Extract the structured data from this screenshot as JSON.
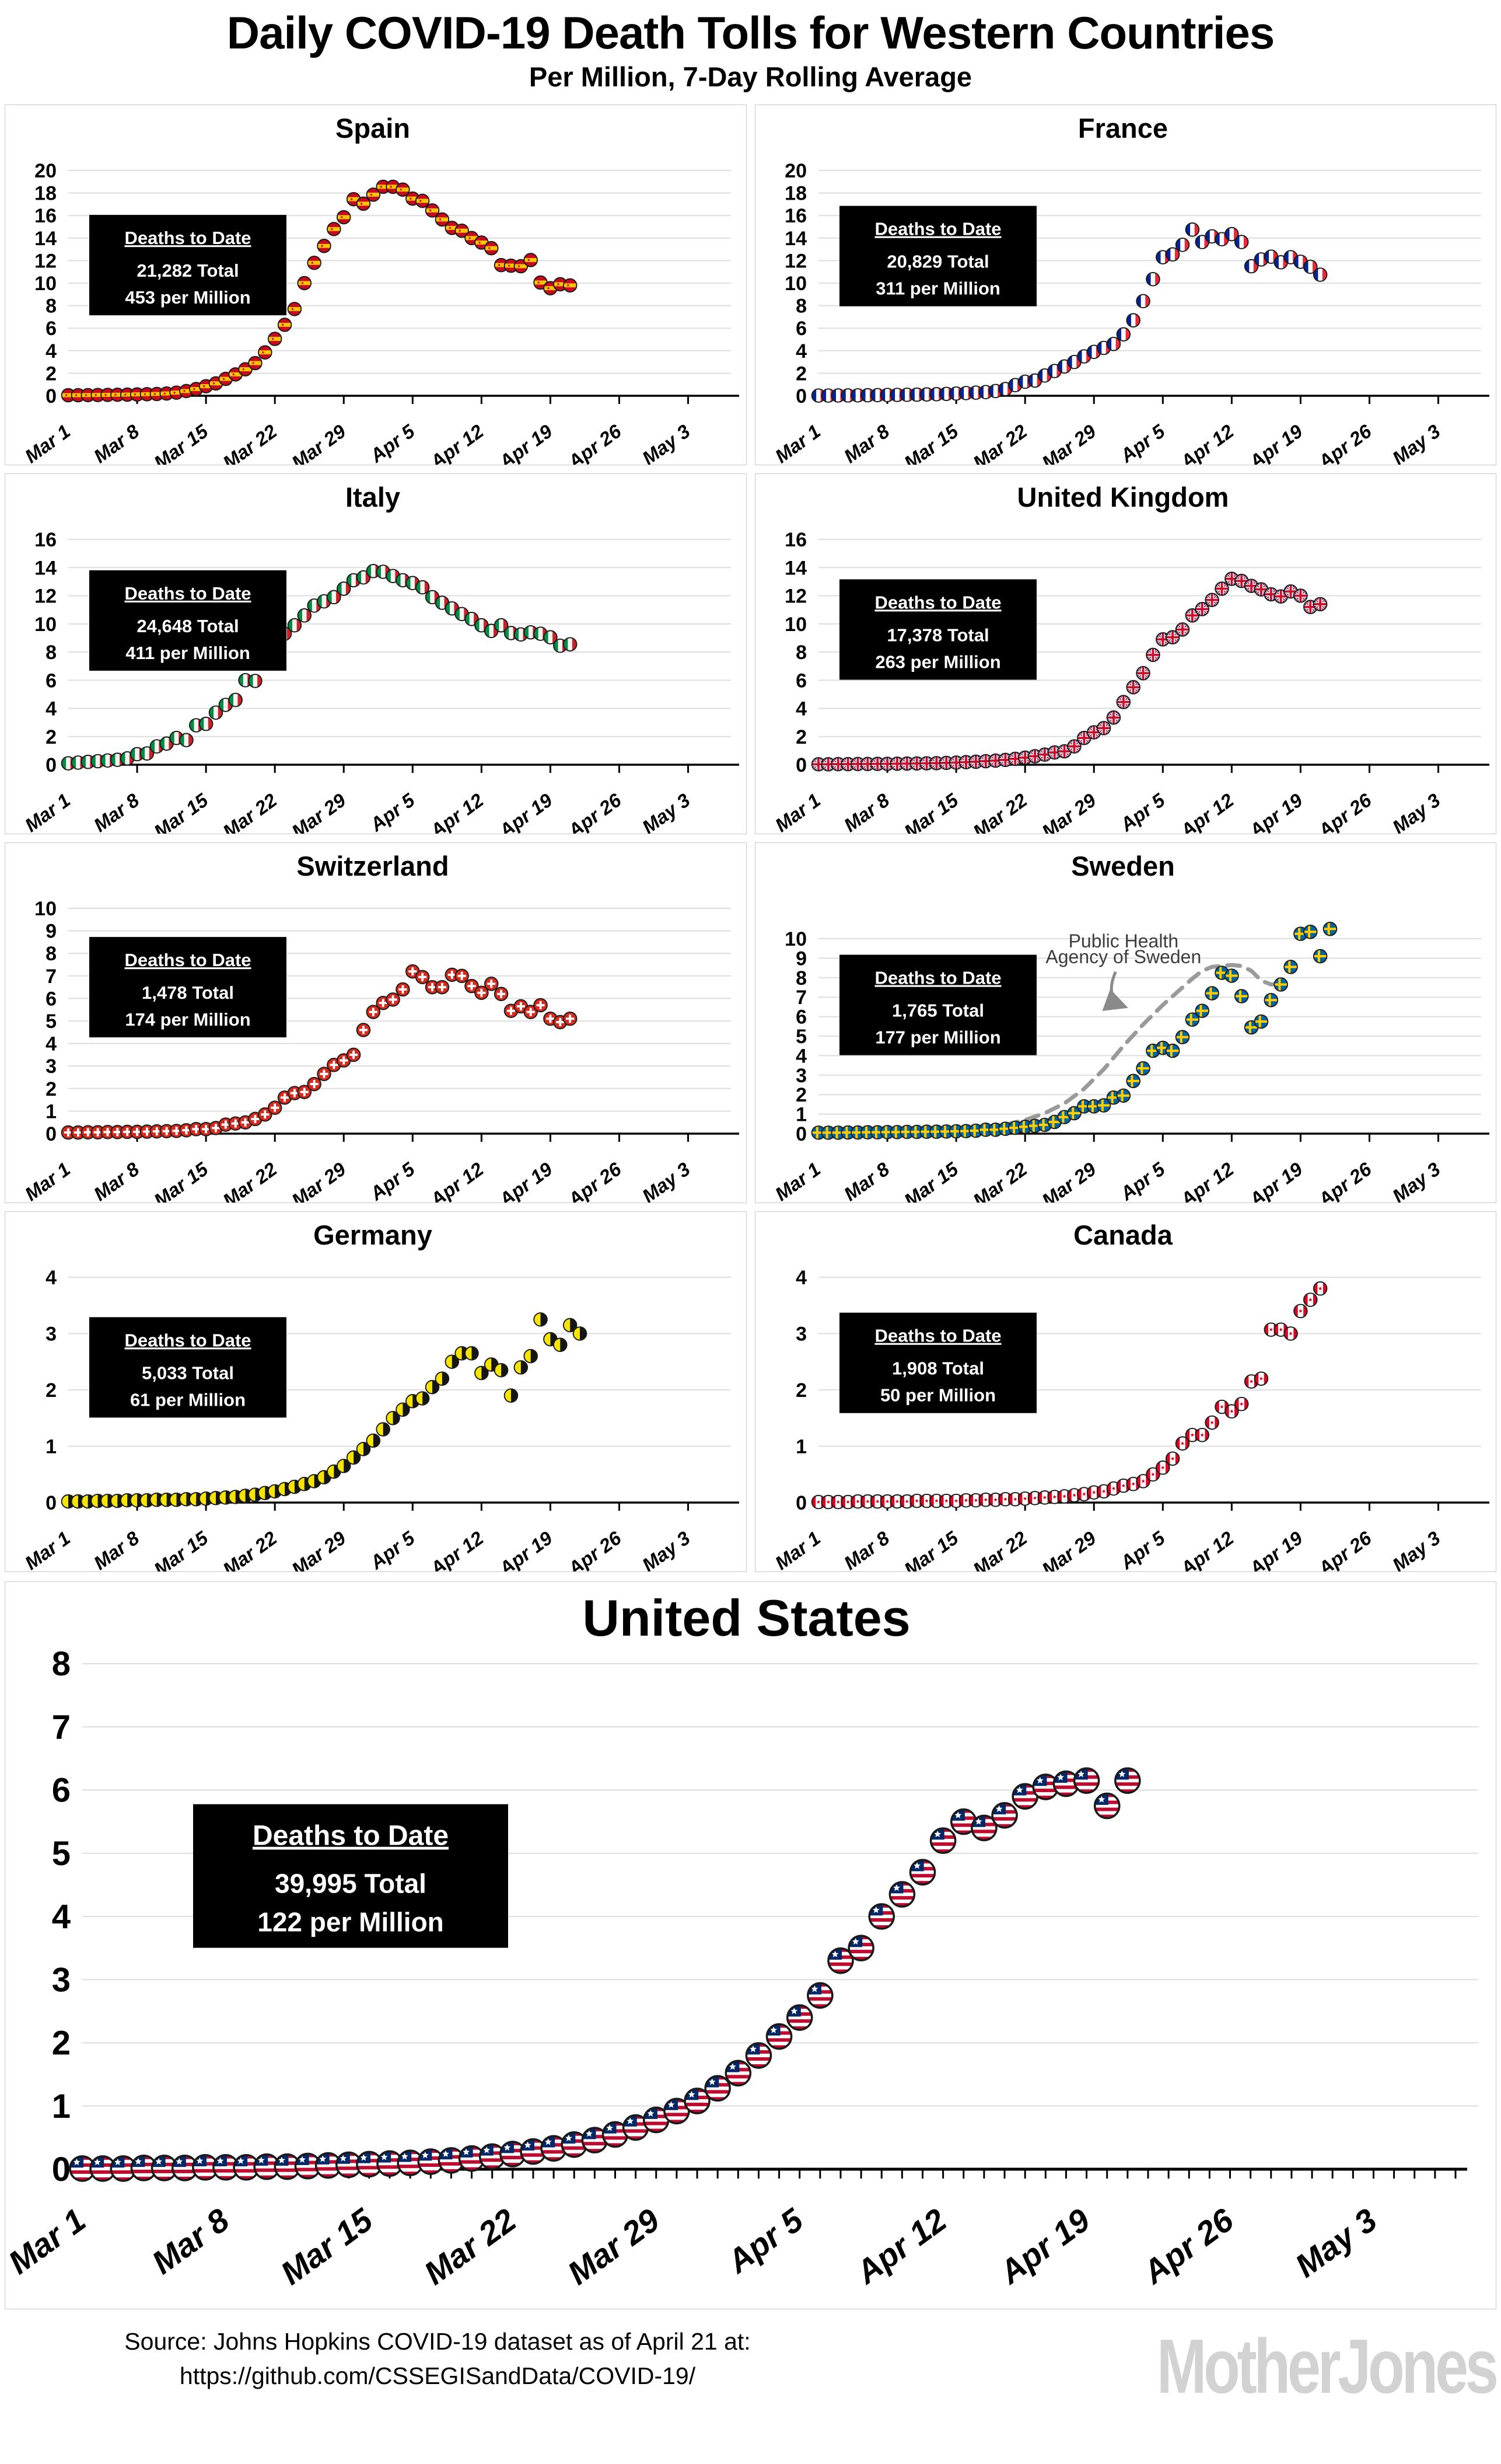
{
  "header": {
    "title": "Daily COVID-19 Death Tolls for Western Countries",
    "subtitle": "Per Million, 7-Day Rolling Average"
  },
  "x_labels": [
    "Mar 1",
    "Mar 8",
    "Mar 15",
    "Mar 22",
    "Mar 29",
    "Apr 5",
    "Apr 12",
    "Apr 19",
    "Apr 26",
    "May 3"
  ],
  "x_label_days": [
    0,
    7,
    14,
    21,
    28,
    35,
    42,
    49,
    56,
    63
  ],
  "chart_data": [
    {
      "type": "scatter",
      "title": "Spain",
      "marker": "spain-flag-icon",
      "ylim": [
        0,
        20
      ],
      "y_step": 2,
      "ann_cy": 0.42,
      "annotation": {
        "heading": "Deaths to Date",
        "total": "21,282 Total",
        "per_million": "453 per Million"
      },
      "x_start": "Mar 1",
      "values": [
        0.05,
        0.05,
        0.06,
        0.07,
        0.08,
        0.09,
        0.1,
        0.12,
        0.14,
        0.16,
        0.2,
        0.28,
        0.42,
        0.6,
        0.85,
        1.1,
        1.5,
        1.9,
        2.35,
        2.9,
        3.85,
        5.05,
        6.3,
        7.7,
        10.0,
        11.8,
        13.3,
        14.8,
        15.85,
        17.45,
        17.05,
        17.85,
        18.55,
        18.55,
        18.3,
        17.5,
        17.3,
        16.45,
        15.65,
        14.9,
        14.65,
        14.0,
        13.6,
        13.1,
        11.6,
        11.55,
        11.5,
        12.05,
        10.05,
        9.55,
        9.9,
        9.8
      ]
    },
    {
      "type": "scatter",
      "title": "France",
      "marker": "france-flag-icon",
      "ylim": [
        0,
        20
      ],
      "y_step": 2,
      "ann_cy": 0.38,
      "annotation": {
        "heading": "Deaths to Date",
        "total": "20,829 Total",
        "per_million": "311 per Million"
      },
      "x_start": "Mar 1",
      "values": [
        0.02,
        0.02,
        0.03,
        0.03,
        0.04,
        0.05,
        0.06,
        0.07,
        0.08,
        0.09,
        0.1,
        0.12,
        0.14,
        0.17,
        0.2,
        0.24,
        0.28,
        0.33,
        0.42,
        0.6,
        0.95,
        1.25,
        1.35,
        1.8,
        2.2,
        2.6,
        3.0,
        3.5,
        3.9,
        4.25,
        4.6,
        5.45,
        6.7,
        8.4,
        10.35,
        12.3,
        12.55,
        13.4,
        14.75,
        13.65,
        14.15,
        13.9,
        14.35,
        13.65,
        11.5,
        12.1,
        12.35,
        11.85,
        12.3,
        11.9,
        11.45,
        10.75
      ]
    },
    {
      "type": "scatter",
      "title": "Italy",
      "marker": "italy-flag-icon",
      "ylim": [
        0,
        16
      ],
      "y_step": 2,
      "ann_cy": 0.36,
      "annotation": {
        "heading": "Deaths to Date",
        "total": "24,648 Total",
        "per_million": "411 per Million"
      },
      "x_start": "Mar 1",
      "values": [
        0.1,
        0.15,
        0.2,
        0.25,
        0.3,
        0.35,
        0.45,
        0.75,
        0.8,
        1.3,
        1.5,
        1.9,
        1.75,
        2.8,
        2.9,
        3.7,
        4.25,
        4.6,
        6.0,
        5.95,
        7.2,
        8.4,
        9.3,
        9.9,
        10.6,
        11.3,
        11.6,
        11.9,
        12.5,
        13.1,
        13.3,
        13.75,
        13.7,
        13.4,
        13.1,
        12.9,
        12.6,
        11.9,
        11.5,
        11.1,
        10.7,
        10.35,
        9.9,
        9.5,
        9.9,
        9.35,
        9.25,
        9.4,
        9.3,
        9.05,
        8.45,
        8.55
      ]
    },
    {
      "type": "scatter",
      "title": "United Kingdom",
      "marker": "uk-flag-icon",
      "ylim": [
        0,
        16
      ],
      "y_step": 2,
      "ann_cy": 0.4,
      "annotation": {
        "heading": "Deaths to Date",
        "total": "17,378 Total",
        "per_million": "263 per Million"
      },
      "x_start": "Mar 1",
      "values": [
        0.03,
        0.03,
        0.04,
        0.04,
        0.05,
        0.05,
        0.06,
        0.06,
        0.07,
        0.08,
        0.09,
        0.1,
        0.11,
        0.13,
        0.15,
        0.18,
        0.21,
        0.25,
        0.29,
        0.34,
        0.42,
        0.5,
        0.6,
        0.72,
        0.87,
        0.95,
        1.3,
        1.9,
        2.3,
        2.6,
        3.35,
        4.45,
        5.5,
        6.5,
        7.8,
        8.9,
        9.05,
        9.6,
        10.6,
        11.05,
        11.7,
        12.5,
        13.2,
        13.05,
        12.7,
        12.45,
        12.1,
        11.95,
        12.3,
        12.0,
        11.2,
        11.4
      ]
    },
    {
      "type": "scatter",
      "title": "Switzerland",
      "marker": "switzerland-flag-icon",
      "ylim": [
        0,
        10
      ],
      "y_step": 1,
      "ann_cy": 0.35,
      "annotation": {
        "heading": "Deaths to Date",
        "total": "1,478 Total",
        "per_million": "174 per Million"
      },
      "x_start": "Mar 1",
      "values": [
        0.05,
        0.05,
        0.06,
        0.06,
        0.07,
        0.07,
        0.08,
        0.08,
        0.09,
        0.1,
        0.11,
        0.12,
        0.15,
        0.2,
        0.2,
        0.25,
        0.4,
        0.45,
        0.5,
        0.65,
        0.85,
        1.15,
        1.6,
        1.8,
        1.85,
        2.2,
        2.65,
        3.05,
        3.25,
        3.5,
        4.6,
        5.4,
        5.8,
        5.95,
        6.4,
        7.2,
        6.95,
        6.5,
        6.5,
        7.05,
        7.0,
        6.55,
        6.25,
        6.65,
        6.2,
        5.45,
        5.65,
        5.4,
        5.7,
        5.1,
        4.95,
        5.1
      ]
    },
    {
      "type": "scatter",
      "title": "Sweden",
      "marker": "sweden-flag-icon",
      "ylim": [
        0,
        10
      ],
      "y_step": 1,
      "ann_cy": 0.34,
      "headroom": 52,
      "annotation": {
        "heading": "Deaths to Date",
        "total": "1,765 Total",
        "per_million": "177 per Million"
      },
      "x_start": "Mar 1",
      "values": [
        0.05,
        0.05,
        0.05,
        0.06,
        0.06,
        0.07,
        0.07,
        0.08,
        0.08,
        0.09,
        0.09,
        0.1,
        0.1,
        0.11,
        0.12,
        0.13,
        0.15,
        0.2,
        0.2,
        0.25,
        0.3,
        0.35,
        0.4,
        0.45,
        0.6,
        0.85,
        1.05,
        1.4,
        1.4,
        1.45,
        1.85,
        1.95,
        2.7,
        3.35,
        4.25,
        4.4,
        4.25,
        4.95,
        5.85,
        6.3,
        7.2,
        8.25,
        8.1,
        7.05,
        5.45,
        5.75,
        6.85,
        7.65,
        8.55,
        10.25,
        10.35,
        9.1,
        10.5
      ],
      "reference_line": {
        "label_line1": "Public Health",
        "label_line2": "Agency of Sweden",
        "points": [
          [
            19,
            0.45
          ],
          [
            21,
            0.7
          ],
          [
            23,
            1.05
          ],
          [
            25,
            1.55
          ],
          [
            27,
            2.3
          ],
          [
            29,
            3.3
          ],
          [
            31,
            4.5
          ],
          [
            33,
            5.6
          ],
          [
            35,
            6.6
          ],
          [
            37,
            7.5
          ],
          [
            38,
            7.95
          ],
          [
            39,
            8.35
          ],
          [
            40,
            8.55
          ],
          [
            41,
            8.6
          ],
          [
            42,
            8.65
          ],
          [
            43,
            8.6
          ],
          [
            44,
            8.35
          ],
          [
            45,
            7.85
          ],
          [
            46,
            7.65
          ],
          [
            47,
            7.7
          ]
        ]
      }
    },
    {
      "type": "scatter",
      "title": "Germany",
      "marker": "germany-flag-icon",
      "ylim": [
        0,
        4
      ],
      "y_step": 1,
      "ann_cy": 0.4,
      "annotation": {
        "heading": "Deaths to Date",
        "total": "5,033 Total",
        "per_million": "61 per Million"
      },
      "x_start": "Mar 1",
      "values": [
        0.02,
        0.02,
        0.02,
        0.03,
        0.03,
        0.03,
        0.04,
        0.04,
        0.04,
        0.05,
        0.05,
        0.05,
        0.06,
        0.06,
        0.07,
        0.08,
        0.09,
        0.1,
        0.12,
        0.14,
        0.17,
        0.2,
        0.24,
        0.28,
        0.33,
        0.38,
        0.45,
        0.55,
        0.65,
        0.8,
        0.95,
        1.1,
        1.3,
        1.5,
        1.65,
        1.8,
        1.85,
        2.05,
        2.2,
        2.5,
        2.65,
        2.65,
        2.3,
        2.45,
        2.35,
        1.9,
        2.4,
        2.6,
        3.25,
        2.9,
        2.8,
        3.15,
        3.0
      ]
    },
    {
      "type": "scatter",
      "title": "Canada",
      "marker": "canada-flag-icon",
      "ylim": [
        0,
        4
      ],
      "y_step": 1,
      "ann_cy": 0.38,
      "annotation": {
        "heading": "Deaths to Date",
        "total": "1,908 Total",
        "per_million": "50 per Million"
      },
      "x_start": "Mar 1",
      "values": [
        0.01,
        0.01,
        0.01,
        0.01,
        0.02,
        0.02,
        0.02,
        0.02,
        0.02,
        0.02,
        0.03,
        0.03,
        0.03,
        0.03,
        0.03,
        0.04,
        0.04,
        0.05,
        0.05,
        0.06,
        0.06,
        0.07,
        0.08,
        0.09,
        0.1,
        0.11,
        0.13,
        0.15,
        0.18,
        0.2,
        0.25,
        0.3,
        0.33,
        0.38,
        0.5,
        0.62,
        0.78,
        1.05,
        1.2,
        1.2,
        1.42,
        1.7,
        1.62,
        1.75,
        2.15,
        2.2,
        3.07,
        3.07,
        3.0,
        3.4,
        3.6,
        3.8
      ]
    },
    {
      "type": "scatter",
      "title": "United States",
      "marker": "usa-flag-icon",
      "big": true,
      "ylim": [
        0,
        8
      ],
      "y_step": 1,
      "ann_cy": 0.42,
      "annotation": {
        "heading": "Deaths to Date",
        "total": "39,995 Total",
        "per_million": "122 per Million"
      },
      "x_start": "Mar 1",
      "values": [
        0.01,
        0.01,
        0.01,
        0.02,
        0.02,
        0.02,
        0.03,
        0.03,
        0.03,
        0.04,
        0.04,
        0.05,
        0.06,
        0.07,
        0.08,
        0.09,
        0.1,
        0.12,
        0.14,
        0.17,
        0.2,
        0.24,
        0.28,
        0.33,
        0.39,
        0.46,
        0.55,
        0.66,
        0.78,
        0.92,
        1.08,
        1.28,
        1.52,
        1.8,
        2.1,
        2.4,
        2.75,
        3.3,
        3.5,
        4.0,
        4.35,
        4.7,
        5.2,
        5.5,
        5.4,
        5.6,
        5.9,
        6.05,
        6.1,
        6.15,
        5.75,
        6.15
      ]
    }
  ],
  "footer": {
    "source_line1": "Source: Johns Hopkins COVID-19 dataset as of April 21 at:",
    "source_line2": "https://github.com/CSSEGISandData/COVID-19/",
    "logo": "MotherJones"
  }
}
